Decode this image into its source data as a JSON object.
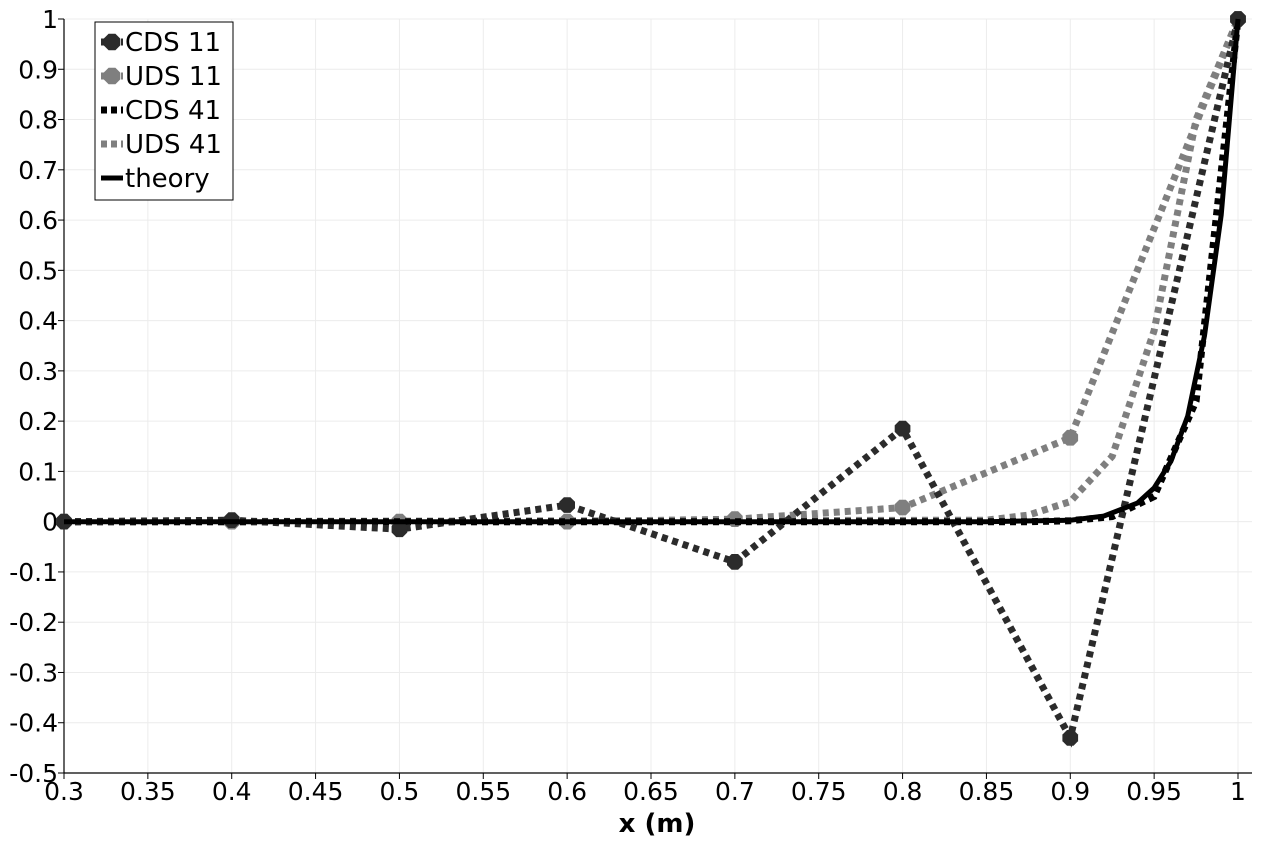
{
  "chart_data": {
    "type": "line",
    "xlabel": "x (m)",
    "ylabel": "",
    "xlim": [
      0.3,
      1.0
    ],
    "ylim": [
      -0.5,
      1.0
    ],
    "grid": true,
    "legend_position": "top-left",
    "x_ticks": [
      "0.3",
      "0.35",
      "0.4",
      "0.45",
      "0.5",
      "0.55",
      "0.6",
      "0.65",
      "0.7",
      "0.75",
      "0.8",
      "0.85",
      "0.9",
      "0.95",
      "1"
    ],
    "y_ticks": [
      "1",
      "0.9",
      "0.8",
      "0.7",
      "0.6",
      "0.5",
      "0.4",
      "0.3",
      "0.2",
      "0.1",
      "0",
      "-0.1",
      "-0.2",
      "-0.3",
      "-0.4",
      "-0.5"
    ],
    "series": [
      {
        "name": "CDS 11",
        "color": "#2b2b2b",
        "style": "dotted-markers",
        "x": [
          0.3,
          0.4,
          0.5,
          0.6,
          0.7,
          0.8,
          0.9,
          1.0
        ],
        "y": [
          0.0,
          0.003,
          -0.015,
          0.033,
          -0.08,
          0.185,
          -0.43,
          1.0
        ]
      },
      {
        "name": "UDS 11",
        "color": "#7f7f7f",
        "style": "dotted-markers",
        "x": [
          0.3,
          0.4,
          0.5,
          0.6,
          0.7,
          0.8,
          0.9,
          1.0
        ],
        "y": [
          0.0,
          0.0,
          0.0,
          0.0,
          0.005,
          0.028,
          0.167,
          1.0
        ]
      },
      {
        "name": "CDS 41",
        "color": "#000000",
        "style": "dotted",
        "x": [
          0.3,
          0.85,
          0.875,
          0.9,
          0.925,
          0.95,
          0.975,
          1.0
        ],
        "y": [
          0.0,
          0.0,
          0.0,
          0.002,
          0.01,
          0.05,
          0.24,
          1.0
        ]
      },
      {
        "name": "UDS 41",
        "color": "#7f7f7f",
        "style": "dotted",
        "x": [
          0.3,
          0.85,
          0.875,
          0.9,
          0.925,
          0.95,
          0.975,
          1.0
        ],
        "y": [
          0.0,
          0.003,
          0.013,
          0.04,
          0.13,
          0.38,
          0.8,
          1.0
        ]
      },
      {
        "name": "theory",
        "color": "#000000",
        "style": "solid",
        "x": [
          0.3,
          0.85,
          0.9,
          0.92,
          0.94,
          0.95,
          0.96,
          0.97,
          0.98,
          0.99,
          1.0
        ],
        "y": [
          0.0,
          0.0,
          0.003,
          0.011,
          0.037,
          0.067,
          0.12,
          0.21,
          0.37,
          0.61,
          1.0
        ]
      }
    ]
  }
}
